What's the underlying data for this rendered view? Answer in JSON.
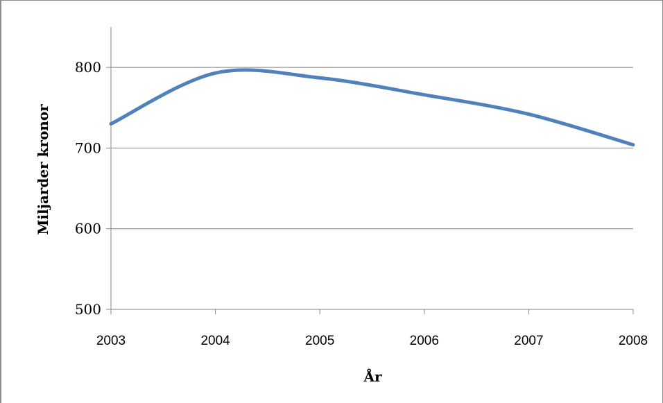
{
  "chart_data": {
    "type": "line",
    "title": "",
    "xlabel": "År",
    "ylabel": "Miljarder kronor",
    "x": [
      2003,
      2004,
      2005,
      2006,
      2007,
      2008
    ],
    "x_tick_labels": [
      "2003",
      "2004",
      "2005",
      "2006",
      "2007",
      "2008"
    ],
    "y_ticks": [
      500,
      600,
      700,
      800
    ],
    "y_tick_labels": [
      "500",
      "600",
      "700",
      "800"
    ],
    "ylim": [
      500,
      850
    ],
    "xlim": [
      2003,
      2008
    ],
    "grid": "horizontal",
    "smooth": true,
    "series": [
      {
        "values": [
          730,
          793,
          787,
          766,
          742,
          704
        ],
        "color": "#4f81bd"
      }
    ]
  }
}
